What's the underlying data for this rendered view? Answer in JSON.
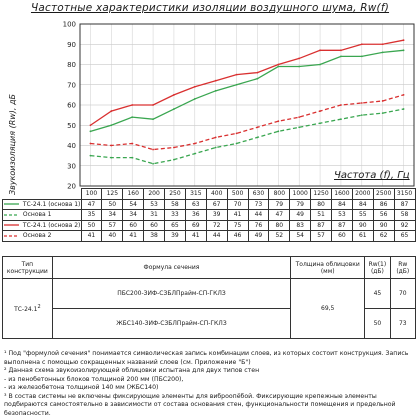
{
  "title": "Частотные характеристики изоляции воздушного шума, Rw(f)",
  "chart_data": {
    "type": "line",
    "ylabel": "Звукоизоляция (Rw), дБ",
    "xlabel": "Частота (f), Гц",
    "ylim": [
      20,
      100
    ],
    "yticks": [
      20,
      30,
      40,
      50,
      60,
      70,
      80,
      90,
      100
    ],
    "categories": [
      "100",
      "125",
      "160",
      "200",
      "250",
      "315",
      "400",
      "500",
      "630",
      "800",
      "1000",
      "1250",
      "1600",
      "2000",
      "2500",
      "3150"
    ],
    "grid": true,
    "series": [
      {
        "name": "ТС-24.1 (основа 1)",
        "color": "#3aa650",
        "dash": "solid",
        "values": [
          47,
          50,
          54,
          53,
          58,
          63,
          67,
          70,
          73,
          79,
          79,
          80,
          84,
          84,
          86,
          87
        ]
      },
      {
        "name": "Основа 1",
        "color": "#3aa650",
        "dash": "dashed",
        "values": [
          35,
          34,
          34,
          31,
          33,
          36,
          39,
          41,
          44,
          47,
          49,
          51,
          53,
          55,
          56,
          58
        ]
      },
      {
        "name": "ТС-24.1 (основа 2)",
        "color": "#d93030",
        "dash": "solid",
        "values": [
          50,
          57,
          60,
          60,
          65,
          69,
          72,
          75,
          76,
          80,
          83,
          87,
          87,
          90,
          90,
          92
        ]
      },
      {
        "name": "Основа 2",
        "color": "#d93030",
        "dash": "dashed",
        "values": [
          41,
          40,
          41,
          38,
          39,
          41,
          44,
          46,
          49,
          52,
          54,
          57,
          60,
          61,
          62,
          65
        ]
      }
    ]
  },
  "spec_table": {
    "headers": [
      "Тип конструкции",
      "Формула сечения",
      "Толщина облицовки (мм)",
      "Rw(1) (дБ)",
      "Rw (дБ)"
    ],
    "type": "ТС-24.1",
    "type_sup": "2",
    "rows": [
      {
        "formula": "ПБС200-ЗИФ-СЗБЛПрайм-СП-ГКЛЗ",
        "rw1": "45",
        "rw": "70"
      },
      {
        "formula": "ЖБС140-ЗИФ-СЗБЛПрайм-СП-ГКЛЗ",
        "rw1": "50",
        "rw": "73"
      }
    ],
    "thickness": "69,5"
  },
  "notes": [
    "¹ Под \"формулой сечения\" понимается символическая запись комбинации слоев, из которых состоит конструкция. Запись выполнена с помощью сокращенных названий слоев (см. Приложение \"Б\")",
    "² Данная схема звукоизолирующей облицовки испытана для двух типов стен",
    " - из пенобетонных блоков толщиной 200 мм (ПБС200),",
    " - из железобетона толщиной 140 мм (ЖБС140)",
    "³ В состав системы не включены фиксирующие элементы для виброопёбой. Фиксирующие крепежные элементы подбираются самостоятельно в зависимости от состава основания стен, функциональности помещения и предельной безопасности."
  ]
}
